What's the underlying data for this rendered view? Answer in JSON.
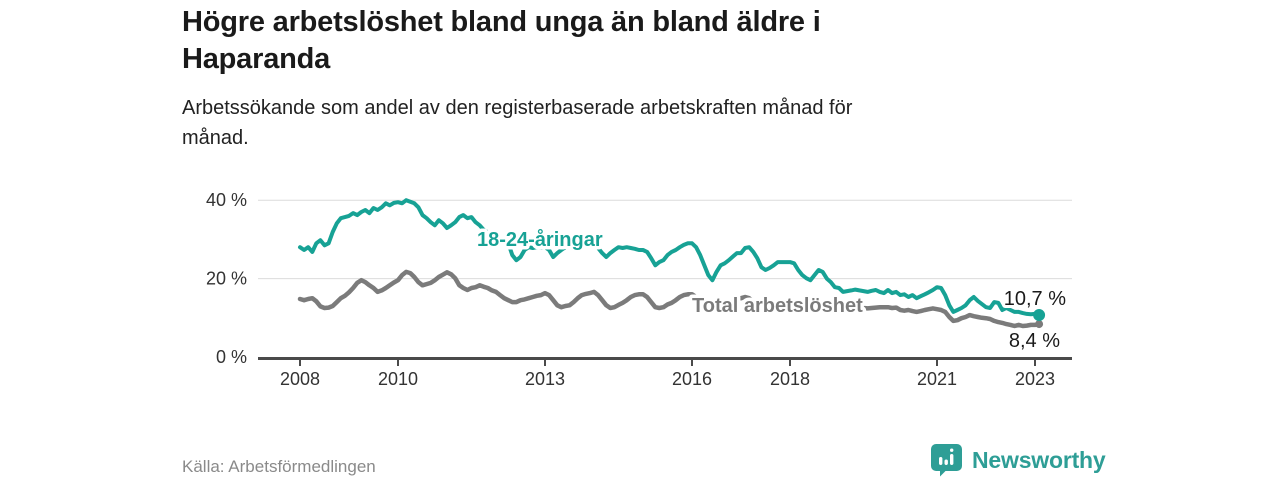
{
  "header": {
    "title_lines": [
      "Högre arbetslöshet bland unga än bland äldre i",
      "Haparanda"
    ],
    "subtitle_lines": [
      "Arbetssökande som andel av den registerbaserade arbetskraften månad för",
      "månad."
    ]
  },
  "footer": {
    "source": "Källa: Arbetsförmedlingen",
    "brand": "Newsworthy"
  },
  "colors": {
    "accent_teal": "#17a295",
    "line_gray": "#7b7b7b",
    "logo_teal": "#2e9e96",
    "axis": "#4a4a4a",
    "grid": "#dcdcdc",
    "tick_text": "#333333",
    "value_text": "#1a1a1a",
    "source_text": "#8a8a8a"
  },
  "chart_data": {
    "type": "line",
    "unit": "%",
    "frequency": "monthly",
    "x_start": "2008-01",
    "x_end": "2023-02",
    "ylim": [
      0,
      44
    ],
    "grid": "horizontal",
    "legend_position": "inline-labels",
    "yticks": [
      {
        "value": 40,
        "label": "40 %"
      },
      {
        "value": 20,
        "label": "20 %"
      },
      {
        "value": 0,
        "label": "0 %"
      }
    ],
    "xticks": [
      {
        "year": 2008,
        "label": "2008"
      },
      {
        "year": 2010,
        "label": "2010"
      },
      {
        "year": 2013,
        "label": "2013"
      },
      {
        "year": 2016,
        "label": "2016"
      },
      {
        "year": 2018,
        "label": "2018"
      },
      {
        "year": 2021,
        "label": "2021"
      },
      {
        "year": 2023,
        "label": "2023"
      }
    ],
    "series": [
      {
        "name": "Total arbetslöshet",
        "color": "#7b7b7b",
        "end_value": 8.4,
        "end_label": "8,4 %",
        "values": [
          14.8,
          14.5,
          14.8,
          15.0,
          14.2,
          12.9,
          12.5,
          12.6,
          13.0,
          14.0,
          15.0,
          15.6,
          16.5,
          17.6,
          18.9,
          19.6,
          19.1,
          18.3,
          17.6,
          16.6,
          17.0,
          17.6,
          18.3,
          19.0,
          19.6,
          20.9,
          21.7,
          21.4,
          20.4,
          19.1,
          18.3,
          18.6,
          18.9,
          19.6,
          20.4,
          21.0,
          21.6,
          21.1,
          20.1,
          18.3,
          17.6,
          17.1,
          17.6,
          17.8,
          18.3,
          17.9,
          17.6,
          17.0,
          16.6,
          15.8,
          15.0,
          14.5,
          14.0,
          14.0,
          14.5,
          14.7,
          15.0,
          15.3,
          15.6,
          15.8,
          16.3,
          15.8,
          14.5,
          13.2,
          12.7,
          13.0,
          13.2,
          14.0,
          15.0,
          15.8,
          16.1,
          16.3,
          16.6,
          15.8,
          14.5,
          13.2,
          12.5,
          12.7,
          13.3,
          13.8,
          14.5,
          15.3,
          15.8,
          16.0,
          16.0,
          15.3,
          14.0,
          12.7,
          12.5,
          12.7,
          13.4,
          13.8,
          14.5,
          15.3,
          15.8,
          16.0,
          16.0,
          15.3,
          14.0,
          12.7,
          12.0,
          11.5,
          12.0,
          12.7,
          13.4,
          13.8,
          14.5,
          15.0,
          15.0,
          15.3,
          15.0,
          14.0,
          13.2,
          12.5,
          12.0,
          12.3,
          12.5,
          12.7,
          13.0,
          13.5,
          13.8,
          13.5,
          13.0,
          12.5,
          12.2,
          12.0,
          12.2,
          12.5,
          12.3,
          12.0,
          12.2,
          12.5,
          12.7,
          12.6,
          12.5,
          12.4,
          12.5,
          12.6,
          12.5,
          12.4,
          12.5,
          12.6,
          12.7,
          12.7,
          12.7,
          12.5,
          12.6,
          12.0,
          11.8,
          12.0,
          11.7,
          11.5,
          11.7,
          12.0,
          12.2,
          12.4,
          12.2,
          12.0,
          11.5,
          10.2,
          9.2,
          9.4,
          9.9,
          10.2,
          10.7,
          10.4,
          10.2,
          10.0,
          9.9,
          9.7,
          9.2,
          8.9,
          8.7,
          8.4,
          8.2,
          7.9,
          8.2,
          7.9,
          8.0,
          8.2,
          8.2,
          8.4
        ]
      },
      {
        "name": "18-24-åringar",
        "color": "#17a295",
        "end_value": 10.7,
        "end_label": "10,7 %",
        "values": [
          28.0,
          27.3,
          28.0,
          26.8,
          29.0,
          29.8,
          28.5,
          29.0,
          31.9,
          34.1,
          35.4,
          35.7,
          36.0,
          36.7,
          36.2,
          37.0,
          37.5,
          36.7,
          38.0,
          37.5,
          38.2,
          39.2,
          38.7,
          39.3,
          39.5,
          39.2,
          40.0,
          39.6,
          39.2,
          38.2,
          36.2,
          35.4,
          34.4,
          33.6,
          34.9,
          34.1,
          32.9,
          33.6,
          34.4,
          35.7,
          36.2,
          35.4,
          35.7,
          34.4,
          33.6,
          32.4,
          31.8,
          31.1,
          30.3,
          29.8,
          30.3,
          29.0,
          26.0,
          24.7,
          25.5,
          27.3,
          28.0,
          27.8,
          28.0,
          28.0,
          28.0,
          27.3,
          25.5,
          26.5,
          27.3,
          28.0,
          29.3,
          30.3,
          30.6,
          29.8,
          29.4,
          29.0,
          29.0,
          27.8,
          26.5,
          25.5,
          26.5,
          27.3,
          28.0,
          27.8,
          28.0,
          27.8,
          27.6,
          27.3,
          27.3,
          26.8,
          25.2,
          23.4,
          24.2,
          24.7,
          26.0,
          26.8,
          27.3,
          28.0,
          28.6,
          29.0,
          29.0,
          28.0,
          26.0,
          23.4,
          20.9,
          19.6,
          21.7,
          23.4,
          23.9,
          24.7,
          25.6,
          26.5,
          26.5,
          27.8,
          28.0,
          26.8,
          25.2,
          22.9,
          22.2,
          22.7,
          23.4,
          24.2,
          24.2,
          24.2,
          24.2,
          23.9,
          22.2,
          20.9,
          20.1,
          19.6,
          20.9,
          22.2,
          21.7,
          20.0,
          19.1,
          17.8,
          17.6,
          16.6,
          16.8,
          17.0,
          17.2,
          17.0,
          16.8,
          16.6,
          16.9,
          17.1,
          16.6,
          16.3,
          17.1,
          16.3,
          16.6,
          15.8,
          16.0,
          15.3,
          15.8,
          15.0,
          15.5,
          16.0,
          16.5,
          17.1,
          17.8,
          17.6,
          15.8,
          13.2,
          11.5,
          12.0,
          12.5,
          13.2,
          14.5,
          15.3,
          14.3,
          13.5,
          12.7,
          12.5,
          14.0,
          13.8,
          12.0,
          12.5,
          12.0,
          11.5,
          11.5,
          11.2,
          11.0,
          10.9,
          11.0,
          10.7
        ]
      }
    ]
  }
}
